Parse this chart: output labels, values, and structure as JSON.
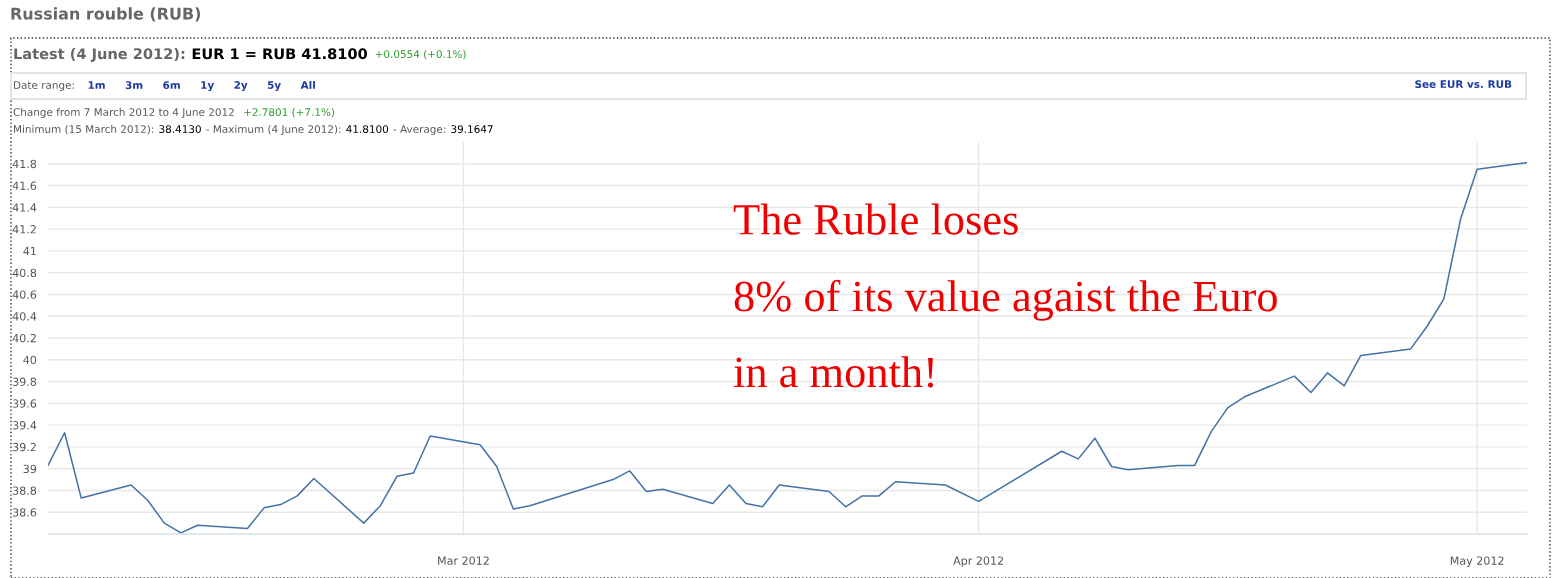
{
  "chart_data": {
    "type": "line",
    "title": "Russian rouble (RUB)",
    "subtitle": "Latest (4 June 2012):",
    "annotations": [
      "EUR 1 = RUB 41.8100",
      "+0.0554 (+0.1%)",
      "Date range:",
      "1m",
      "3m",
      "6m",
      "1y",
      "2y",
      "5y",
      "All",
      "See EUR vs. RUB",
      "Change from 7 March 2012 to 4 June 2012",
      "+2.7801 (+7.1%)",
      "Minimum (15 March 2012):",
      "38.4130",
      "- Maximum (4 June 2012):",
      "41.8100",
      "- Average:",
      "39.1647",
      "The Ruble loses\n8% of its value agaist the Euro\nin a month!"
    ],
    "x": [
      "2012-02-05",
      "2012-02-06",
      "2012-02-07",
      "2012-02-10",
      "2012-02-11",
      "2012-02-12",
      "2012-02-13",
      "2012-02-14",
      "2012-02-17",
      "2012-02-18",
      "2012-02-19",
      "2012-02-20",
      "2012-02-21",
      "2012-02-24",
      "2012-02-25",
      "2012-02-26",
      "2012-02-27",
      "2012-02-28",
      "2012-03-02",
      "2012-03-03",
      "2012-03-04",
      "2012-03-05",
      "2012-03-10",
      "2012-03-11",
      "2012-03-12",
      "2012-03-13",
      "2012-03-16",
      "2012-03-17",
      "2012-03-18",
      "2012-03-19",
      "2012-03-20",
      "2012-03-23",
      "2012-03-24",
      "2012-03-25",
      "2012-03-26",
      "2012-03-27",
      "2012-03-30",
      "2012-04-01",
      "2012-04-06",
      "2012-04-07",
      "2012-04-08",
      "2012-04-09",
      "2012-04-10",
      "2012-04-13",
      "2012-04-14",
      "2012-04-15",
      "2012-04-16",
      "2012-04-17",
      "2012-04-20",
      "2012-04-21",
      "2012-04-22",
      "2012-04-23",
      "2012-04-24",
      "2012-04-27",
      "2012-04-28",
      "2012-04-29",
      "2012-04-30",
      "2012-05-01",
      "2012-05-04"
    ],
    "series": [
      {
        "color": "#4572a7",
        "values": [
          39.03,
          39.33,
          38.73,
          38.85,
          38.71,
          38.5,
          38.41,
          38.48,
          38.45,
          38.64,
          38.67,
          38.75,
          38.91,
          38.5,
          38.66,
          38.93,
          38.96,
          39.3,
          39.22,
          39.02,
          38.63,
          38.66,
          38.9,
          38.98,
          38.79,
          38.81,
          38.68,
          38.85,
          38.68,
          38.65,
          38.85,
          38.79,
          38.65,
          38.75,
          38.75,
          38.88,
          38.85,
          38.7,
          39.16,
          39.09,
          39.28,
          39.02,
          38.99,
          39.03,
          39.03,
          39.34,
          39.56,
          39.66,
          39.85,
          39.7,
          39.88,
          39.76,
          40.04,
          40.1,
          40.31,
          40.56,
          41.29,
          41.75,
          41.81
        ]
      }
    ],
    "xlim": [
      "2012-02-05",
      "2012-05-04"
    ],
    "xticks": [
      {
        "value": "2012-03-01",
        "label": "Mar 2012"
      },
      {
        "value": "2012-04-01",
        "label": "Apr 2012"
      },
      {
        "value": "2012-05-01",
        "label": "May 2012"
      }
    ],
    "ylim": [
      38.4,
      42.0
    ],
    "yticks": [
      38.6,
      38.8,
      39,
      39.2,
      39.4,
      39.6,
      39.8,
      40,
      40.2,
      40.4,
      40.6,
      40.8,
      41,
      41.2,
      41.4,
      41.6,
      41.8
    ],
    "grid": true,
    "marker": "none",
    "line_style": "solid",
    "legend": false
  }
}
